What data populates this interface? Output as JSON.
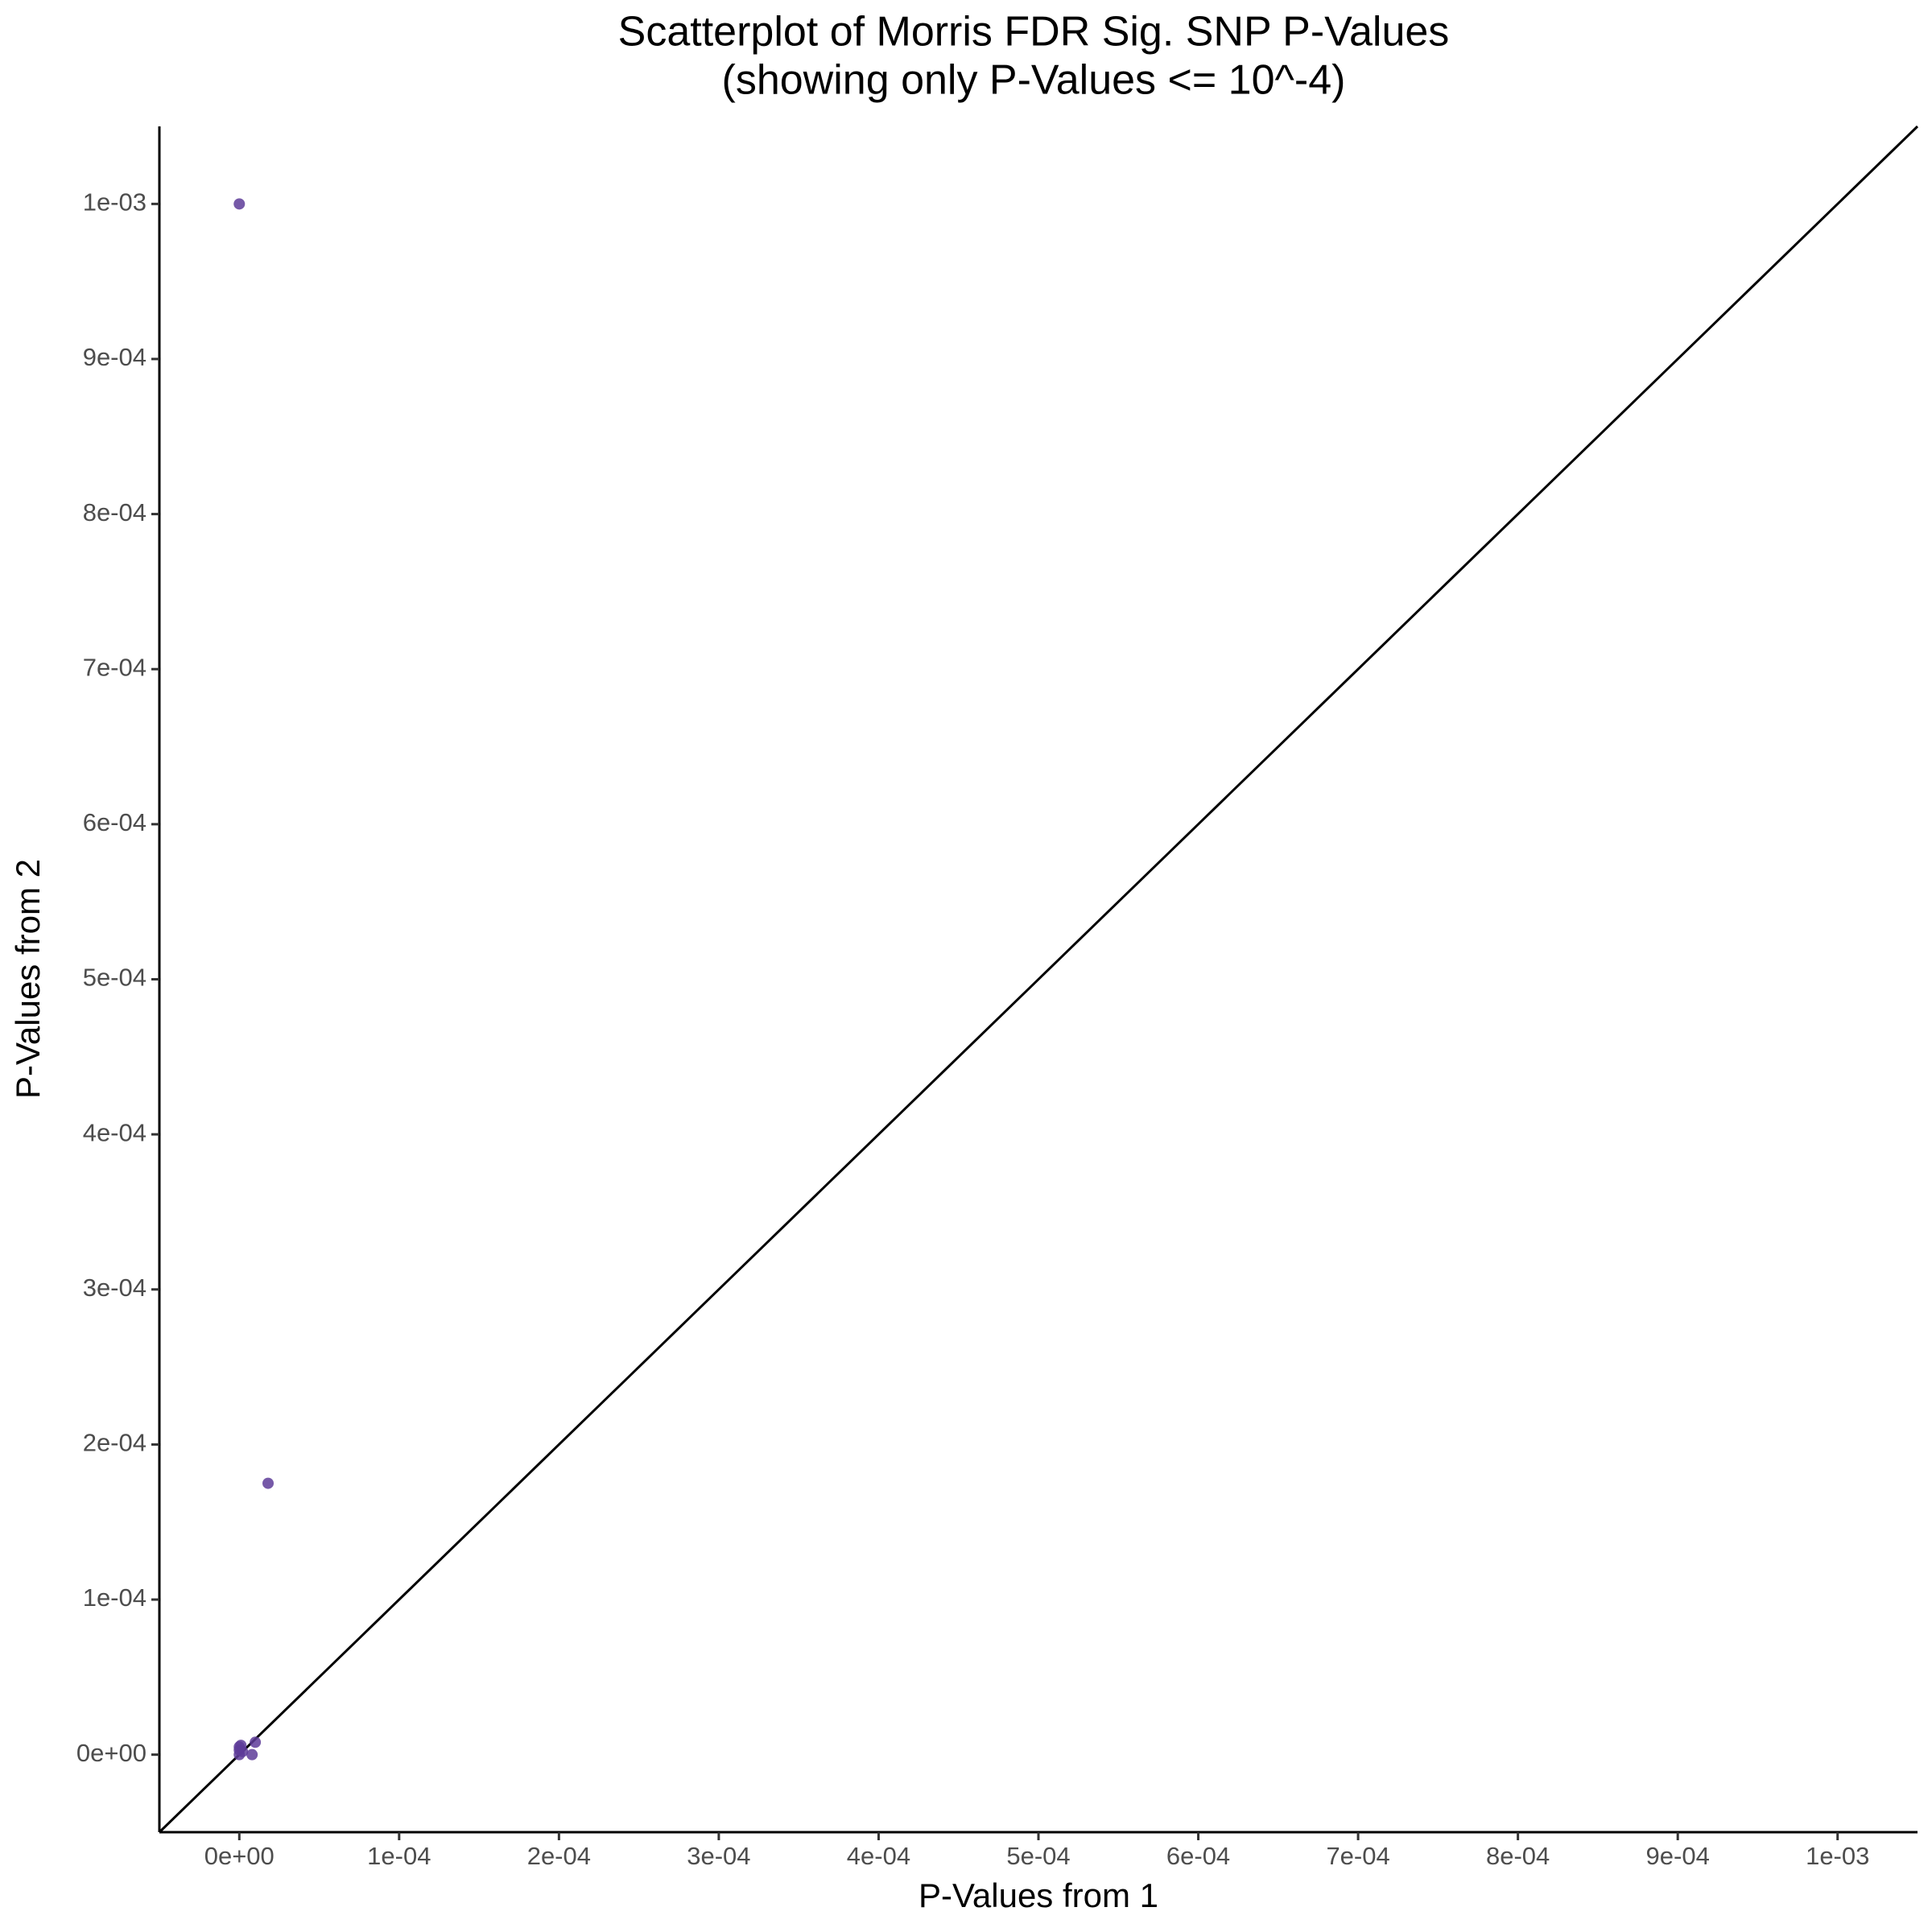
{
  "chart_data": {
    "type": "scatter",
    "title": "Scatterplot of Morris FDR Sig. SNP P-Values",
    "subtitle": "(showing only P-Values <= 10^-4)",
    "x_label": "P-Values from 1",
    "y_label": "P-Values from 2",
    "color": "#5e3c99",
    "abline": {
      "intercept": 0,
      "slope": 1
    },
    "xlim": [
      -5e-05,
      0.00105
    ],
    "ylim": [
      -5e-05,
      0.00105
    ],
    "xticks": [
      {
        "value": 0,
        "label": "0e+00"
      },
      {
        "value": 0.0001,
        "label": "1e-04"
      },
      {
        "value": 0.0002,
        "label": "2e-04"
      },
      {
        "value": 0.0003,
        "label": "3e-04"
      },
      {
        "value": 0.0004,
        "label": "4e-04"
      },
      {
        "value": 0.0005,
        "label": "5e-04"
      },
      {
        "value": 0.0006,
        "label": "6e-04"
      },
      {
        "value": 0.0007,
        "label": "7e-04"
      },
      {
        "value": 0.0008,
        "label": "8e-04"
      },
      {
        "value": 0.0009,
        "label": "9e-04"
      },
      {
        "value": 0.001,
        "label": "1e-03"
      }
    ],
    "yticks": [
      {
        "value": 0,
        "label": "0e+00"
      },
      {
        "value": 0.0001,
        "label": "1e-04"
      },
      {
        "value": 0.0002,
        "label": "2e-04"
      },
      {
        "value": 0.0003,
        "label": "3e-04"
      },
      {
        "value": 0.0004,
        "label": "4e-04"
      },
      {
        "value": 0.0005,
        "label": "5e-04"
      },
      {
        "value": 0.0006,
        "label": "6e-04"
      },
      {
        "value": 0.0007,
        "label": "7e-04"
      },
      {
        "value": 0.0008,
        "label": "8e-04"
      },
      {
        "value": 0.0009,
        "label": "9e-04"
      },
      {
        "value": 0.001,
        "label": "1e-03"
      }
    ],
    "x": [
      0,
      1.8e-05,
      1e-05,
      8e-06,
      0,
      0,
      2e-06,
      0,
      1e-06
    ],
    "values": [
      0.001,
      0.000175,
      8e-06,
      0,
      5e-06,
      3e-06,
      2e-06,
      0,
      6e-06
    ]
  }
}
